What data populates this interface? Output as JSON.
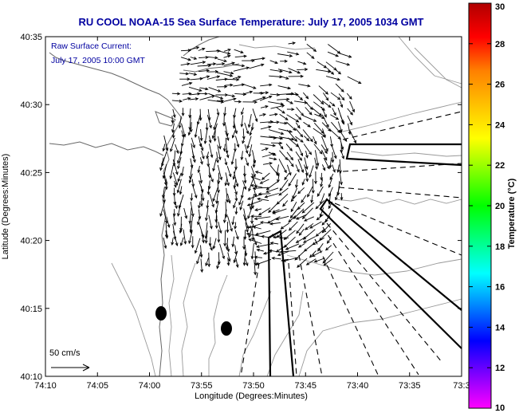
{
  "title": "RU COOL  NOAA-15  Sea Surface Temperature:  July 17, 2005 1034 GMT",
  "legend": {
    "line1": "Raw Surface Current:",
    "line2": "July 17, 2005 10:00 GMT",
    "scale_label": "50 cm/s"
  },
  "x_axis": {
    "label": "Longitude (Degrees:Minutes)",
    "ticks": [
      "74:10",
      "74:05",
      "74:00",
      "73:55",
      "73:50",
      "73:45",
      "73:40",
      "73:35",
      "73:3"
    ]
  },
  "y_axis": {
    "label": "Latitude (Degrees:Minutes)",
    "ticks": [
      "40:35",
      "40:30",
      "40:25",
      "40:20",
      "40:15",
      "40:10"
    ]
  },
  "colorbar": {
    "label": "Temperature (°C)",
    "ticks": [
      "30",
      "28",
      "26",
      "24",
      "22",
      "20",
      "18",
      "16",
      "14",
      "12",
      "10"
    ],
    "range": [
      10,
      30
    ],
    "colors": [
      "#ff00ff",
      "#8000ff",
      "#0000ff",
      "#0080ff",
      "#00ffff",
      "#00ff80",
      "#00ff00",
      "#80ff00",
      "#ffff00",
      "#ffc000",
      "#ff8000",
      "#ff0000",
      "#b00000"
    ]
  },
  "map": {
    "projection": "degrees:minutes",
    "lon_range_min": [
      -74.1667,
      -73.5
    ],
    "lat_range_min": [
      40.1667,
      40.5833
    ],
    "features": [
      "coastline",
      "bathymetry-contours",
      "radar-coverage-sectors",
      "current-vectors",
      "station-markers"
    ]
  }
}
